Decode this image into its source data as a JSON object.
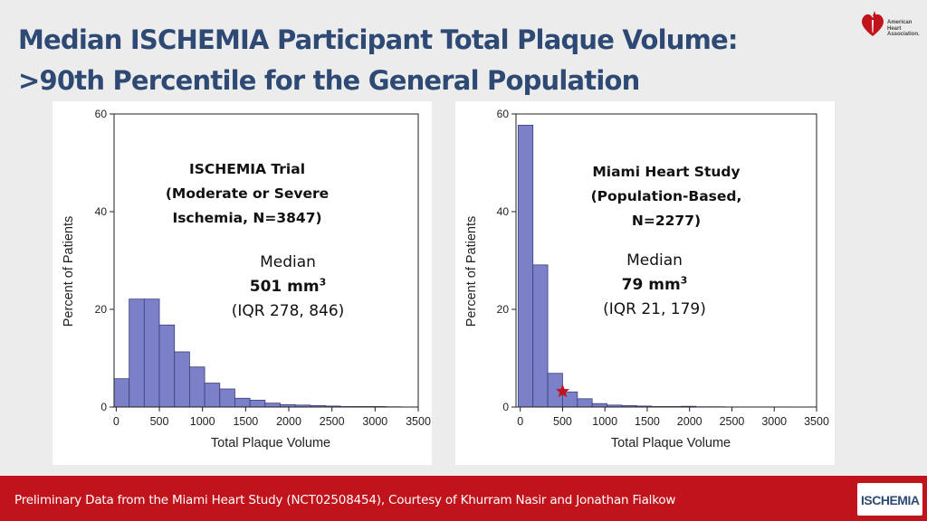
{
  "title": {
    "line1": "Median ISCHEMIA Participant Total Plaque Volume:",
    "line2": ">90th Percentile for the General Population"
  },
  "logos": {
    "aha": {
      "line1": "American",
      "line2": "Heart",
      "line3": "Association."
    },
    "ischemia": "ISCHEMIA"
  },
  "colors": {
    "title": "#2e4a74",
    "bar": "#7b80c8",
    "bar_stroke": "#3a3f78",
    "footer": "#c0131b",
    "star": "#c0131b"
  },
  "footer": {
    "text": "Preliminary Data from the Miami Heart Study (NCT02508454), Courtesy of Khurram Nasir and Jonathan Fialkow"
  },
  "chart_data": [
    {
      "type": "bar",
      "subtype": "histogram",
      "study_label": [
        "ISCHEMIA Trial",
        "(Moderate or Severe",
        "Ischemia, N=3847)"
      ],
      "median_label": "Median",
      "median_value": "501 mm",
      "median_unit_sup": "3",
      "iqr": "(IQR 278, 846)",
      "xlabel": "Total Plaque Volume",
      "ylabel": "Percent of Patients",
      "xlim": [
        -25,
        3500
      ],
      "ylim": [
        0,
        60
      ],
      "xticks": [
        0,
        500,
        1000,
        1500,
        2000,
        2500,
        3000,
        3500
      ],
      "yticks": [
        0,
        20,
        40,
        60
      ],
      "bin_width": 175,
      "bin_starts": [
        -25,
        150,
        325,
        500,
        675,
        850,
        1025,
        1200,
        1375,
        1550,
        1725,
        1900,
        2075,
        2250,
        2425,
        2600,
        2775,
        2950,
        3125
      ],
      "values": [
        5.8,
        22.1,
        22.1,
        16.8,
        11.3,
        8.2,
        4.9,
        3.7,
        1.8,
        1.4,
        0.8,
        0.5,
        0.4,
        0.3,
        0.2,
        0.1,
        0.1,
        0.1,
        0.05
      ],
      "marker": null
    },
    {
      "type": "bar",
      "subtype": "histogram",
      "study_label": [
        "Miami Heart Study",
        "(Population-Based,",
        "N=2277)"
      ],
      "median_label": "Median",
      "median_value": "79 mm",
      "median_unit_sup": "3",
      "iqr": "(IQR 21, 179)",
      "xlabel": "Total Plaque Volume",
      "ylabel": "Percent of Patients",
      "xlim": [
        -50,
        3500
      ],
      "ylim": [
        0,
        60
      ],
      "xticks": [
        0,
        500,
        1000,
        1500,
        2000,
        2500,
        3000,
        3500
      ],
      "yticks": [
        0,
        20,
        40,
        60
      ],
      "bin_width": 175,
      "bin_starts": [
        -25,
        150,
        325,
        500,
        675,
        850,
        1025,
        1200,
        1375,
        1550,
        1725,
        1900,
        2075,
        2250,
        2425,
        2600,
        2775,
        2950,
        3125
      ],
      "values": [
        57.7,
        29.1,
        6.9,
        3.1,
        1.7,
        0.7,
        0.4,
        0.3,
        0.2,
        0.1,
        0.1,
        0.15,
        0.05,
        0.05,
        0.02,
        0.02,
        0.02,
        0.02,
        0.0
      ],
      "marker": {
        "x": 501,
        "y": 3.2,
        "label": "star"
      }
    }
  ]
}
